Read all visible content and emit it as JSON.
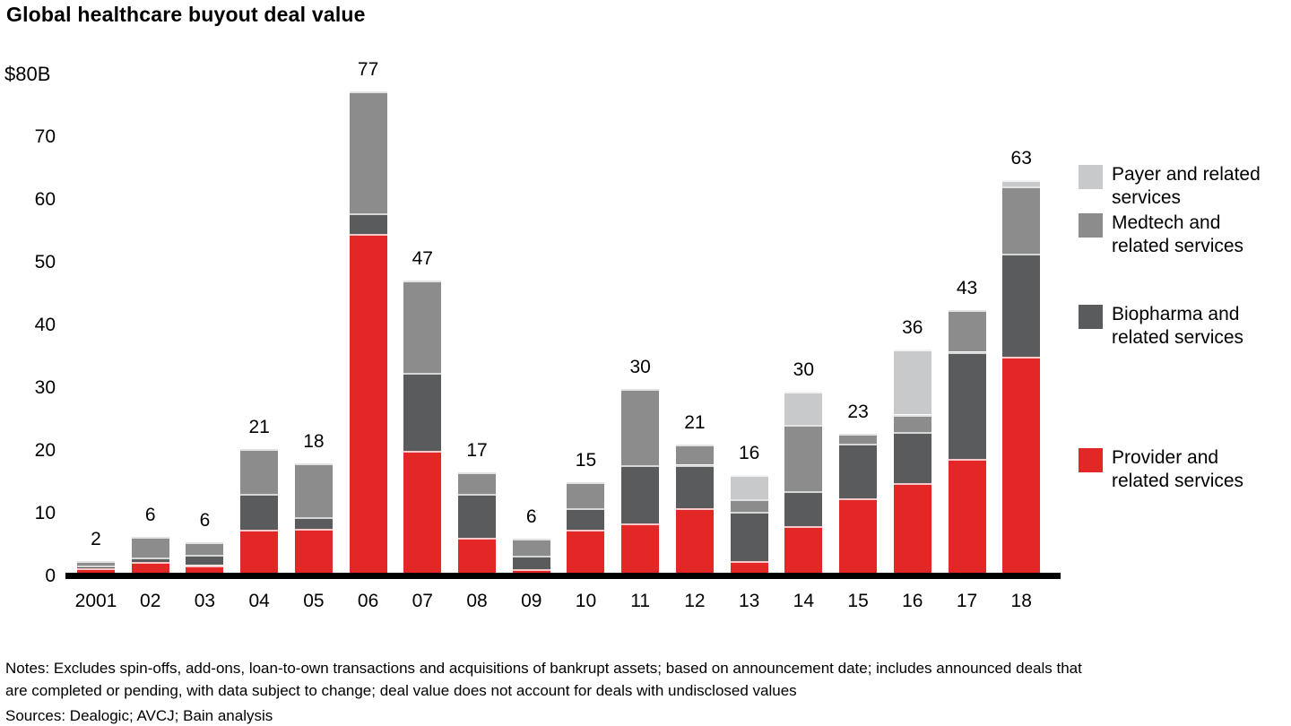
{
  "header": {
    "title": "Global healthcare buyout deal value"
  },
  "y_axis": {
    "top_label": "$80B",
    "tick_values": [
      70,
      60,
      50,
      40,
      30,
      20,
      10,
      0
    ]
  },
  "chart_data": {
    "type": "bar",
    "stacked": true,
    "title": "Global healthcare buyout deal value",
    "unit": "$B",
    "ylim": [
      0,
      80
    ],
    "grid": false,
    "legend_position": "right",
    "categories": [
      "2001",
      "02",
      "03",
      "04",
      "05",
      "06",
      "07",
      "08",
      "09",
      "10",
      "11",
      "12",
      "13",
      "14",
      "15",
      "16",
      "17",
      "18"
    ],
    "totals": [
      2,
      6,
      6,
      21,
      18,
      77,
      47,
      17,
      6,
      15,
      30,
      21,
      16,
      30,
      23,
      36,
      43,
      63
    ],
    "series": [
      {
        "name": "Provider and related services",
        "color": "#e32726",
        "values": [
          1.0,
          2.0,
          1.5,
          7.2,
          7.3,
          54.3,
          19.7,
          5.8,
          0.9,
          7.2,
          8.1,
          10.6,
          2.2,
          7.7,
          12.2,
          14.6,
          18.5,
          34.7
        ]
      },
      {
        "name": "Biopharma and related services",
        "color": "#5a5b5d",
        "values": [
          0.4,
          0.7,
          1.6,
          5.7,
          1.8,
          3.3,
          12.5,
          7.0,
          2.1,
          3.4,
          9.3,
          6.9,
          7.8,
          5.6,
          8.7,
          8.1,
          17.0,
          16.5
        ]
      },
      {
        "name": "Medtech and related services",
        "color": "#8c8c8c",
        "values": [
          0.7,
          3.3,
          2.0,
          7.1,
          8.6,
          19.4,
          14.6,
          3.5,
          2.7,
          4.1,
          12.2,
          3.2,
          2.0,
          10.6,
          1.6,
          2.8,
          6.7,
          10.6
        ]
      },
      {
        "name": "Payer and related services",
        "color": "#c8c9ca",
        "values": [
          0,
          0,
          0,
          0,
          0,
          0,
          0,
          0,
          0,
          0,
          0,
          0,
          3.8,
          5.2,
          0,
          10.4,
          0,
          1.1
        ]
      }
    ]
  },
  "legend": [
    {
      "name": "Payer and related services",
      "lines": [
        "Payer and related",
        "services"
      ],
      "color": "#c8c9ca"
    },
    {
      "name": "Medtech and related services",
      "lines": [
        "Medtech and",
        "related services"
      ],
      "color": "#8c8c8c"
    },
    {
      "name": "Biopharma and related services",
      "lines": [
        "Biopharma and",
        "related services"
      ],
      "color": "#5a5b5d"
    },
    {
      "name": "Provider and related services",
      "lines": [
        "Provider and",
        "related services"
      ],
      "color": "#e32726"
    }
  ],
  "footer": {
    "notes_line1": "Notes: Excludes spin-offs, add-ons, loan-to-own transactions and acquisitions of bankrupt assets; based on announcement date; includes announced deals that",
    "notes_line2": "are completed or pending, with data subject to change; deal value does not account for deals with undisclosed values",
    "sources": "Sources: Dealogic; AVCJ; Bain analysis"
  }
}
